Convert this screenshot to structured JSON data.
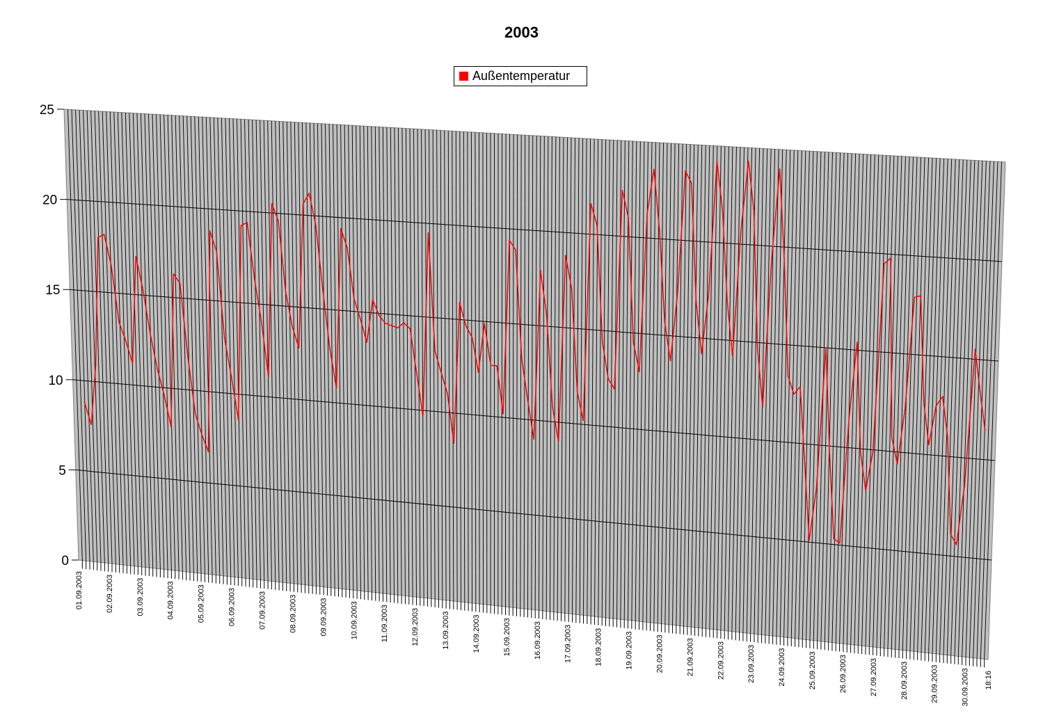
{
  "chart_data": {
    "type": "line",
    "title": "2003",
    "style": "3d-wall",
    "legend": {
      "position": "top",
      "entries": [
        "Außentemperatur"
      ]
    },
    "ylim": [
      0,
      25
    ],
    "y_ticks": [
      "0",
      "5",
      "10",
      "15",
      "20",
      "25"
    ],
    "grid": true,
    "x_range": [
      "01.09.2003",
      "30.09.2003 18:16"
    ],
    "x_tick_labels": [
      "01.09.2003",
      "02.09.2003",
      "03.09.2003",
      "04.09.2003",
      "05.09.2003",
      "06.09.2003",
      "07.09.2003",
      "08.09.2003",
      "09.09.2003",
      "10.09.2003",
      "11.09.2003",
      "12.09.2003",
      "13.09.2003",
      "14.09.2003",
      "15.09.2003",
      "16.09.2003",
      "17.09.2003",
      "18.09.2003",
      "19.09.2003",
      "20.09.2003",
      "21.09.2003",
      "22.09.2003",
      "23.09.2003",
      "24.09.2003",
      "25.09.2003",
      "26.09.2003",
      "27.09.2003",
      "28.09.2003",
      "29.09.2003",
      "30.09.2003",
      "18:16"
    ],
    "series": [
      {
        "name": "Außentemperatur",
        "color": "#ff0000",
        "values": [
          8.8,
          7.6,
          10.9,
          18.0,
          18.2,
          16.5,
          13.4,
          12.4,
          11.2,
          17.1,
          15.3,
          12.9,
          11.0,
          9.6,
          7.9,
          16.3,
          15.8,
          11.8,
          8.7,
          7.6,
          6.7,
          18.8,
          17.7,
          13.0,
          10.9,
          8.6,
          19.2,
          19.4,
          16.4,
          14.1,
          11.1,
          20.5,
          19.6,
          15.8,
          13.9,
          12.8,
          20.6,
          21.2,
          19.5,
          16.0,
          12.9,
          10.8,
          19.4,
          18.4,
          15.7,
          14.6,
          13.4,
          15.7,
          14.9,
          14.5,
          14.4,
          14.3,
          14.6,
          14.3,
          12.0,
          9.7,
          19.5,
          13.2,
          12.1,
          11.0,
          8.4,
          15.9,
          14.7,
          14.1,
          12.3,
          14.9,
          12.7,
          12.7,
          10.2,
          19.4,
          18.9,
          13.2,
          11.0,
          9.0,
          17.9,
          15.6,
          10.8,
          9.0,
          18.8,
          17.1,
          11.7,
          10.2,
          21.6,
          20.5,
          14.4,
          12.5,
          12.0,
          22.4,
          21.0,
          14.5,
          13.0,
          21.3,
          23.6,
          20.4,
          15.7,
          13.7,
          17.2,
          23.6,
          23.0,
          16.9,
          14.2,
          17.3,
          24.2,
          21.7,
          17.0,
          14.2,
          20.7,
          24.3,
          21.8,
          14.7,
          11.7,
          19.4,
          24.0,
          19.4,
          13.4,
          12.5,
          12.9,
          9.0,
          5.1,
          7.8,
          15.0,
          9.6,
          5.3,
          5.1,
          11.5,
          15.4,
          9.8,
          7.9,
          9.9,
          19.5,
          19.8,
          10.7,
          9.4,
          12.2,
          17.9,
          18.0,
          12.6,
          10.5,
          12.5,
          13.0,
          11.0,
          6.1,
          5.6,
          8.6,
          15.5,
          13.4,
          11.5
        ]
      }
    ],
    "colors": {
      "wall": "#c0c0c0",
      "gridline": "#000000",
      "series": "#ff0000"
    }
  }
}
